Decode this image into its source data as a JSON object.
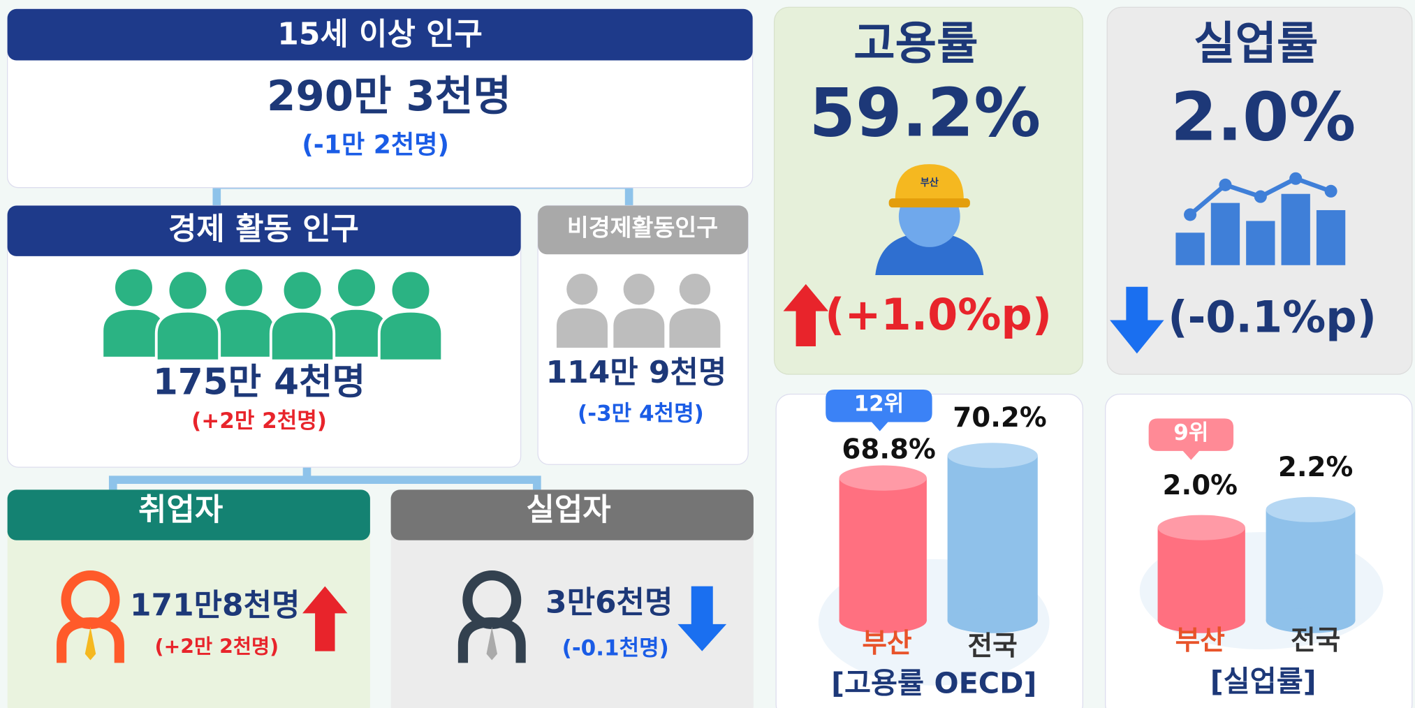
{
  "population": {
    "title": "15세 이상 인구",
    "value": "290만 3천명",
    "change": "(-1만 2천명)"
  },
  "economically_active": {
    "title": "경제 활동 인구",
    "value": "175만 4천명",
    "change": "(+2만 2천명)"
  },
  "economically_inactive": {
    "title": "비경제활동인구",
    "value": "114만 9천명",
    "change": "(-3만 4천명)"
  },
  "employed": {
    "title": "취업자",
    "value": "171만8천명",
    "change": "(+2만 2천명)"
  },
  "unemployed": {
    "title": "실업자",
    "value": "3만6천명",
    "change": "(-0.1천명)"
  },
  "employment_rate": {
    "title": "고용률",
    "value": "59.2%",
    "change": "(+1.0%p)",
    "helmet_label": "부산"
  },
  "unemployment_rate": {
    "title": "실업률",
    "value": "2.0%",
    "change": "(-0.1%p)"
  },
  "oecd_comparison": {
    "rank": "12위",
    "busan_value": "68.8%",
    "national_value": "70.2%",
    "busan_label": "부산",
    "national_label": "전국",
    "caption": "[고용률 OECD]"
  },
  "unemployment_comparison": {
    "rank": "9위",
    "busan_value": "2.0%",
    "national_value": "2.2%",
    "busan_label": "부산",
    "national_label": "전국",
    "caption": "[실업률]"
  }
}
